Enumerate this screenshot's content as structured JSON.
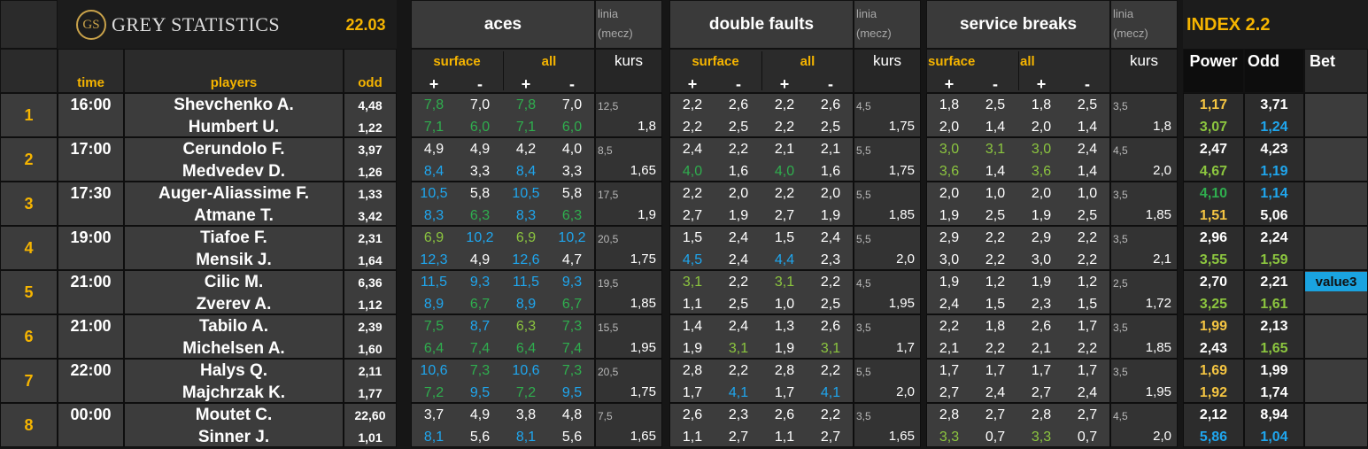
{
  "header": {
    "logo": "GS",
    "brand": "GREY STATISTICS",
    "date": "22.03",
    "col_time": "time",
    "col_players": "players",
    "col_odd": "odd",
    "index_title": "INDEX 2.2",
    "power": "Power",
    "odd2": "Odd",
    "bet": "Bet"
  },
  "groups": [
    {
      "title": "aces",
      "sub": [
        "surface",
        "all"
      ],
      "signs": [
        "+",
        "-"
      ],
      "linia": [
        "linia",
        "(mecz)"
      ],
      "kurs": "kurs"
    },
    {
      "title": "double faults",
      "sub": [
        "surface",
        "all"
      ],
      "signs": [
        "+",
        "-"
      ],
      "linia": [
        "linia",
        "(mecz)"
      ],
      "kurs": "kurs"
    },
    {
      "title": "service breaks",
      "sub": [
        "surface",
        "all"
      ],
      "signs": [
        "+",
        "-"
      ],
      "linia": [
        "linia",
        "(mecz)"
      ],
      "kurs": "kurs"
    }
  ],
  "palette": {
    "w": "#ffffff",
    "g": "#2fae4e",
    "b": "#1fa6ee",
    "l": "#8cc63f",
    "y": "#f5c542"
  },
  "matches": [
    {
      "no": "1",
      "time": "16:00",
      "lines": [
        "12,5",
        "4,5",
        "3,5"
      ],
      "kurs": [
        "1,8",
        "1,75",
        "1,8"
      ],
      "players": [
        {
          "name": "Shevchenko A.",
          "odd": "4,48",
          "stats": [
            [
              "7,8",
              "7,0",
              "7,8",
              "7,0"
            ],
            [
              "2,2",
              "2,6",
              "2,2",
              "2,6"
            ],
            [
              "1,8",
              "2,5",
              "1,8",
              "2,5"
            ]
          ],
          "power": "1,17",
          "odd2": "3,71",
          "colors": "gwgwwwwwwwwwyw"
        },
        {
          "name": "Humbert U.",
          "odd": "1,22",
          "stats": [
            [
              "7,1",
              "6,0",
              "7,1",
              "6,0"
            ],
            [
              "2,2",
              "2,5",
              "2,2",
              "2,5"
            ],
            [
              "2,0",
              "1,4",
              "2,0",
              "1,4"
            ]
          ],
          "power": "3,07",
          "odd2": "1,24",
          "colors": "ggggwwwwwwwwlb"
        }
      ]
    },
    {
      "no": "2",
      "time": "17:00",
      "lines": [
        "8,5",
        "5,5",
        "4,5"
      ],
      "kurs": [
        "1,65",
        "1,75",
        "2,0"
      ],
      "players": [
        {
          "name": "Cerundolo F.",
          "odd": "3,97",
          "stats": [
            [
              "4,9",
              "4,9",
              "4,2",
              "4,0"
            ],
            [
              "2,4",
              "2,2",
              "2,1",
              "2,1"
            ],
            [
              "3,0",
              "3,1",
              "3,0",
              "2,4"
            ]
          ],
          "power": "2,47",
          "odd2": "4,23",
          "colors": "wwwwwwwwlllwww"
        },
        {
          "name": "Medvedev D.",
          "odd": "1,26",
          "stats": [
            [
              "8,4",
              "3,3",
              "8,4",
              "3,3"
            ],
            [
              "4,0",
              "1,6",
              "4,0",
              "1,6"
            ],
            [
              "3,6",
              "1,4",
              "3,6",
              "1,4"
            ]
          ],
          "power": "4,67",
          "odd2": "1,19",
          "colors": "bwbwgwgwlwlwlb"
        }
      ]
    },
    {
      "no": "3",
      "time": "17:30",
      "lines": [
        "17,5",
        "5,5",
        "3,5"
      ],
      "kurs": [
        "1,9",
        "1,85",
        "1,85"
      ],
      "players": [
        {
          "name": "Auger-Aliassime F.",
          "odd": "1,33",
          "stats": [
            [
              "10,5",
              "5,8",
              "10,5",
              "5,8"
            ],
            [
              "2,2",
              "2,0",
              "2,2",
              "2,0"
            ],
            [
              "2,0",
              "1,0",
              "2,0",
              "1,0"
            ]
          ],
          "power": "4,10",
          "odd2": "1,14",
          "colors": "bwbwwwwwwwwwgb"
        },
        {
          "name": "Atmane T.",
          "odd": "3,42",
          "stats": [
            [
              "8,3",
              "6,3",
              "8,3",
              "6,3"
            ],
            [
              "2,7",
              "1,9",
              "2,7",
              "1,9"
            ],
            [
              "1,9",
              "2,5",
              "1,9",
              "2,5"
            ]
          ],
          "power": "1,51",
          "odd2": "5,06",
          "colors": "bgbgwwwwwwwwyw"
        }
      ]
    },
    {
      "no": "4",
      "time": "19:00",
      "lines": [
        "20,5",
        "5,5",
        "3,5"
      ],
      "kurs": [
        "1,75",
        "2,0",
        "2,1"
      ],
      "players": [
        {
          "name": "Tiafoe F.",
          "odd": "2,31",
          "stats": [
            [
              "6,9",
              "10,2",
              "6,9",
              "10,2"
            ],
            [
              "1,5",
              "2,4",
              "1,5",
              "2,4"
            ],
            [
              "2,9",
              "2,2",
              "2,9",
              "2,2"
            ]
          ],
          "power": "2,96",
          "odd2": "2,24",
          "colors": "lblbwwwwwwwwww"
        },
        {
          "name": "Mensik J.",
          "odd": "1,64",
          "stats": [
            [
              "12,3",
              "4,9",
              "12,6",
              "4,7"
            ],
            [
              "4,5",
              "2,4",
              "4,4",
              "2,3"
            ],
            [
              "3,0",
              "2,2",
              "3,0",
              "2,2"
            ]
          ],
          "power": "3,55",
          "odd2": "1,59",
          "colors": "bwbwbwbwwwwwll"
        }
      ]
    },
    {
      "no": "5",
      "time": "21:00",
      "lines": [
        "19,5",
        "4,5",
        "2,5"
      ],
      "kurs": [
        "1,85",
        "1,95",
        "1,72"
      ],
      "players": [
        {
          "name": "Cilic M.",
          "odd": "6,36",
          "stats": [
            [
              "11,5",
              "9,3",
              "11,5",
              "9,3"
            ],
            [
              "3,1",
              "2,2",
              "3,1",
              "2,2"
            ],
            [
              "1,9",
              "1,2",
              "1,9",
              "1,2"
            ]
          ],
          "power": "2,70",
          "odd2": "2,21",
          "colors": "bbbblwlwwwwwww",
          "bet": "value3"
        },
        {
          "name": "Zverev A.",
          "odd": "1,12",
          "stats": [
            [
              "8,9",
              "6,7",
              "8,9",
              "6,7"
            ],
            [
              "1,1",
              "2,5",
              "1,0",
              "2,5"
            ],
            [
              "2,4",
              "1,5",
              "2,3",
              "1,5"
            ]
          ],
          "power": "3,25",
          "odd2": "1,61",
          "colors": "bgbgwwwwwwwwll"
        }
      ]
    },
    {
      "no": "6",
      "time": "21:00",
      "lines": [
        "15,5",
        "3,5",
        "3,5"
      ],
      "kurs": [
        "1,95",
        "1,7",
        "1,85"
      ],
      "players": [
        {
          "name": "Tabilo A.",
          "odd": "2,39",
          "stats": [
            [
              "7,5",
              "8,7",
              "6,3",
              "7,3"
            ],
            [
              "1,4",
              "2,4",
              "1,3",
              "2,6"
            ],
            [
              "2,2",
              "1,8",
              "2,6",
              "1,7"
            ]
          ],
          "power": "1,99",
          "odd2": "2,13",
          "colors": "gblgwwwwwwwwyw"
        },
        {
          "name": "Michelsen A.",
          "odd": "1,60",
          "stats": [
            [
              "6,4",
              "7,4",
              "6,4",
              "7,4"
            ],
            [
              "1,9",
              "3,1",
              "1,9",
              "3,1"
            ],
            [
              "2,1",
              "2,2",
              "2,1",
              "2,2"
            ]
          ],
          "power": "2,43",
          "odd2": "1,65",
          "colors": "ggggwlwlwwwwwl"
        }
      ]
    },
    {
      "no": "7",
      "time": "22:00",
      "lines": [
        "20,5",
        "5,5",
        "3,5"
      ],
      "kurs": [
        "1,75",
        "2,0",
        "1,95"
      ],
      "players": [
        {
          "name": "Halys Q.",
          "odd": "2,11",
          "stats": [
            [
              "10,6",
              "7,3",
              "10,6",
              "7,3"
            ],
            [
              "2,8",
              "2,2",
              "2,8",
              "2,2"
            ],
            [
              "1,7",
              "1,7",
              "1,7",
              "1,7"
            ]
          ],
          "power": "1,69",
          "odd2": "1,99",
          "colors": "bgbgwwwwwwwwyw"
        },
        {
          "name": "Majchrzak K.",
          "odd": "1,77",
          "stats": [
            [
              "7,2",
              "9,5",
              "7,2",
              "9,5"
            ],
            [
              "1,7",
              "4,1",
              "1,7",
              "4,1"
            ],
            [
              "2,7",
              "2,4",
              "2,7",
              "2,4"
            ]
          ],
          "power": "1,92",
          "odd2": "1,74",
          "colors": "gbgbwbwbwwwwyw"
        }
      ]
    },
    {
      "no": "8",
      "time": "00:00",
      "lines": [
        "7,5",
        "3,5",
        "4,5"
      ],
      "kurs": [
        "1,65",
        "1,65",
        "2,0"
      ],
      "players": [
        {
          "name": "Moutet C.",
          "odd": "22,60",
          "stats": [
            [
              "3,7",
              "4,9",
              "3,8",
              "4,8"
            ],
            [
              "2,6",
              "2,3",
              "2,6",
              "2,2"
            ],
            [
              "2,8",
              "2,7",
              "2,8",
              "2,7"
            ]
          ],
          "power": "2,12",
          "odd2": "8,94",
          "colors": "wwwwwwwwwwwwww"
        },
        {
          "name": "Sinner J.",
          "odd": "1,01",
          "stats": [
            [
              "8,1",
              "5,6",
              "8,1",
              "5,6"
            ],
            [
              "1,1",
              "2,7",
              "1,1",
              "2,7"
            ],
            [
              "3,3",
              "0,7",
              "3,3",
              "0,7"
            ]
          ],
          "power": "5,86",
          "odd2": "1,04",
          "colors": "bwbwwwwwlwlwbb"
        }
      ]
    }
  ]
}
